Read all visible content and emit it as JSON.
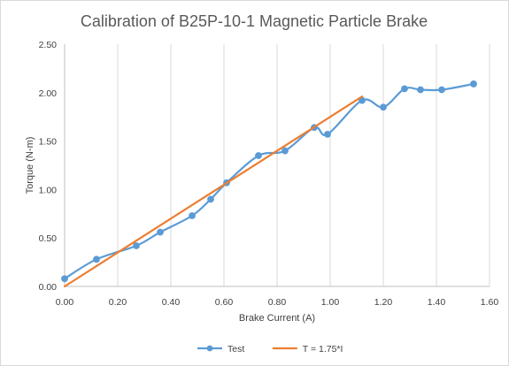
{
  "chart_data": {
    "type": "line",
    "title": "Calibration of B25P-10-1 Magnetic Particle Brake",
    "xlabel": "Brake Current (A)",
    "ylabel": "Torque (N-m)",
    "xlim": [
      0,
      1.6
    ],
    "ylim": [
      0,
      2.5
    ],
    "x_ticks": [
      "0.00",
      "0.20",
      "0.40",
      "0.60",
      "0.80",
      "1.00",
      "1.20",
      "1.40",
      "1.60"
    ],
    "y_ticks": [
      "0.00",
      "0.50",
      "1.00",
      "1.50",
      "2.00",
      "2.50"
    ],
    "grid": "vertical",
    "legend_position": "bottom",
    "series": [
      {
        "name": "Test",
        "color": "#5b9bd5",
        "marker": "circle",
        "smooth": true,
        "x": [
          0.0,
          0.12,
          0.27,
          0.36,
          0.48,
          0.55,
          0.61,
          0.73,
          0.83,
          0.94,
          0.99,
          1.12,
          1.2,
          1.28,
          1.34,
          1.42,
          1.54
        ],
        "y": [
          0.08,
          0.28,
          0.42,
          0.56,
          0.73,
          0.9,
          1.07,
          1.35,
          1.4,
          1.64,
          1.57,
          1.92,
          1.85,
          2.04,
          2.03,
          2.03,
          2.09
        ]
      },
      {
        "name": "T = 1.75*I",
        "color": "#ed7d31",
        "marker": "none",
        "smooth": false,
        "x": [
          0.0,
          1.12
        ],
        "y": [
          0.0,
          1.96
        ]
      }
    ]
  }
}
